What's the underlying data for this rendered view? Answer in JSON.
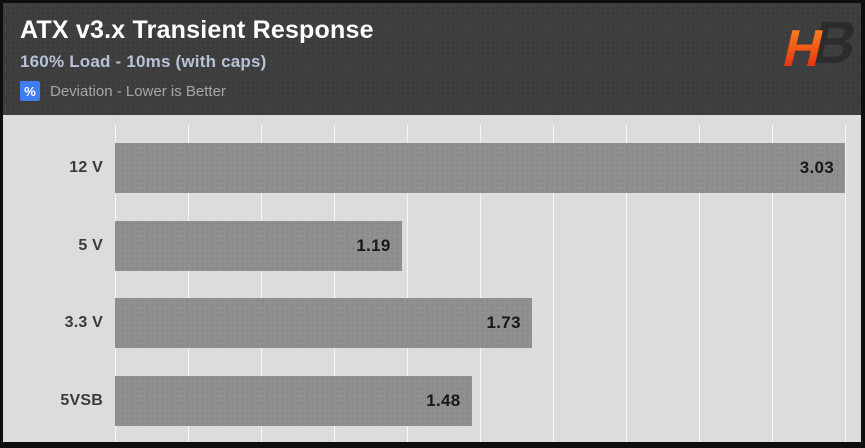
{
  "header": {
    "title": "ATX v3.x Transient Response",
    "subtitle": "160% Load - 10ms (with caps)",
    "legend": {
      "symbol": "%",
      "label": "Deviation - Lower is Better"
    },
    "logo": {
      "letter_1": "H",
      "letter_2": "B"
    }
  },
  "colors": {
    "header_bg": "#3d3d3d",
    "chart_bg": "#dcdcdc",
    "bar": "#909090",
    "legend_chip": "#3f7ef2",
    "title": "#ffffff",
    "subtitle": "#b6c2d6",
    "value_text": "#181818",
    "logo_orange": "#ff8a1e",
    "logo_red": "#e3230f",
    "logo_dark": "#2c2c2c"
  },
  "chart_data": {
    "type": "bar",
    "orientation": "horizontal",
    "title": "ATX v3.x Transient Response",
    "subtitle": "160% Load - 10ms (with caps)",
    "legend": "Deviation - Lower is Better",
    "unit": "%",
    "categories": [
      "12 V",
      "5 V",
      "3.3 V",
      "5VSB"
    ],
    "values": [
      3.03,
      1.19,
      1.73,
      1.48
    ],
    "value_labels": [
      "3.03",
      "1.19",
      "1.73",
      "1.48"
    ],
    "xlim": [
      0,
      3.03
    ],
    "grid": true,
    "grid_intervals": 10,
    "legend_position": "top-left",
    "value_label_position": "inside-end"
  }
}
